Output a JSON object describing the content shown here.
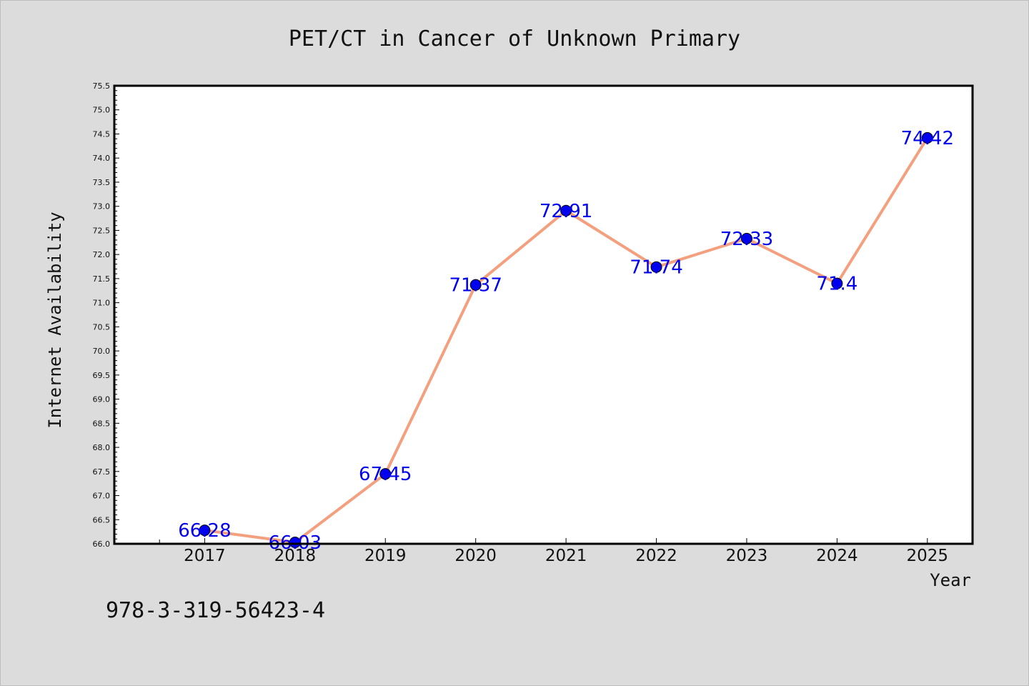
{
  "footer_code": "978-3-319-56423-4",
  "colors": {
    "background": "#dcdcdc",
    "plot_background": "#ffffff",
    "line": "#f4a07f",
    "marker": "#0000ee",
    "data_label": "#0000ee"
  },
  "chart_data": {
    "type": "line",
    "title": "PET/CT in Cancer of Unknown Primary",
    "xlabel": "Year",
    "ylabel": "Internet Availability",
    "x": [
      2017,
      2018,
      2019,
      2020,
      2021,
      2022,
      2023,
      2024,
      2025
    ],
    "x_range": [
      2016,
      2025.5
    ],
    "series": [
      {
        "values": [
          66.28,
          66.03,
          67.45,
          71.37,
          72.91,
          71.74,
          72.33,
          71.4,
          74.42
        ],
        "labels": [
          "66.28",
          "66.03",
          "67.45",
          "71.37",
          "72.91",
          "71.74",
          "72.33",
          "71.4",
          "74.42"
        ]
      }
    ],
    "ylim": [
      66.0,
      75.5
    ],
    "yticks": [
      "66.0",
      "66.5",
      "67.0",
      "67.5",
      "68.0",
      "68.5",
      "69.0",
      "69.5",
      "70.0",
      "70.5",
      "71.0",
      "71.5",
      "72.0",
      "72.5",
      "73.0",
      "73.5",
      "74.0",
      "74.5",
      "75.0",
      "75.5"
    ],
    "grid": false,
    "legend": "none"
  }
}
